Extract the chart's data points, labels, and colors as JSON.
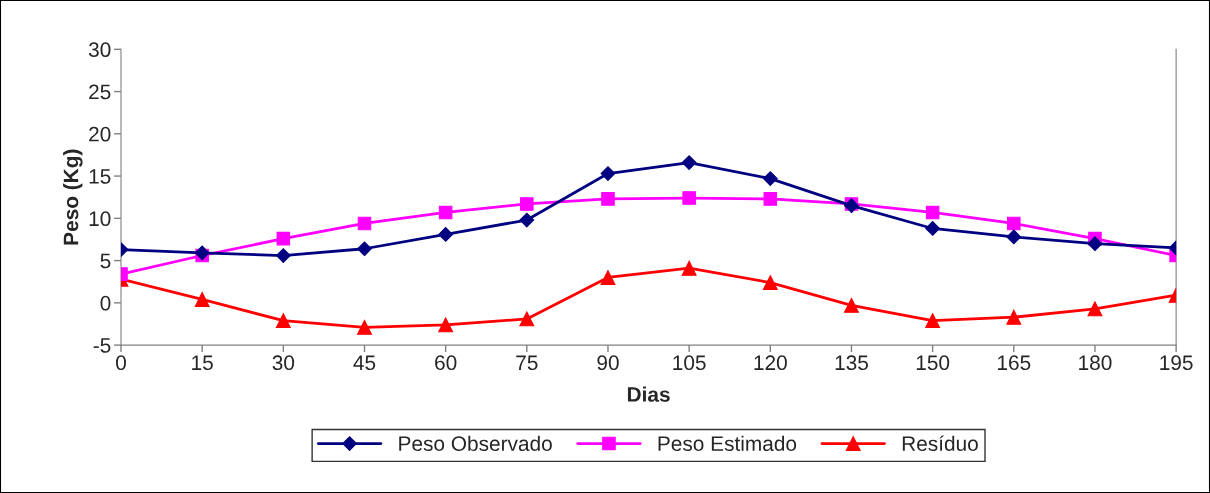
{
  "chart_data": {
    "type": "line",
    "xlabel": "Dias",
    "ylabel": "Peso (Kg)",
    "x": [
      0,
      15,
      30,
      45,
      60,
      75,
      90,
      105,
      120,
      135,
      150,
      165,
      180,
      195
    ],
    "xlim": [
      0,
      195
    ],
    "xticks": [
      0,
      15,
      30,
      45,
      60,
      75,
      90,
      105,
      120,
      135,
      150,
      165,
      180,
      195
    ],
    "ylim": [
      -5,
      30
    ],
    "yticks": [
      -5,
      0,
      5,
      10,
      15,
      20,
      25,
      30
    ],
    "series": [
      {
        "name": "Peso Observado",
        "color": "#000080",
        "marker": "diamond",
        "values": [
          6.3,
          5.9,
          5.6,
          6.4,
          8.1,
          9.8,
          15.3,
          16.6,
          14.7,
          11.5,
          8.8,
          7.8,
          7.0,
          6.5
        ]
      },
      {
        "name": "Peso Estimado",
        "color": "#ff00ff",
        "marker": "square",
        "values": [
          3.4,
          5.6,
          7.6,
          9.4,
          10.7,
          11.7,
          12.3,
          12.4,
          12.3,
          11.7,
          10.7,
          9.4,
          7.6,
          5.6
        ]
      },
      {
        "name": "Resíduo",
        "color": "#ff0000",
        "marker": "triangle",
        "values": [
          2.8,
          0.4,
          -2.1,
          -2.9,
          -2.6,
          -1.9,
          3.0,
          4.1,
          2.4,
          -0.3,
          -2.1,
          -1.7,
          -0.7,
          0.9
        ]
      }
    ],
    "grid": false,
    "legend": "bottom",
    "line_style": "solid"
  }
}
